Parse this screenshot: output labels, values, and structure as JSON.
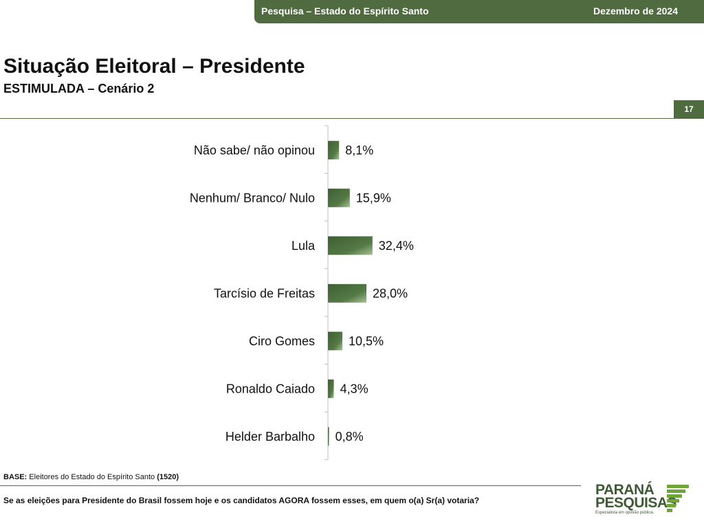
{
  "header": {
    "survey": "Pesquisa – Estado do Espírito Santo",
    "date": "Dezembro de 2024"
  },
  "title": "Situação Eleitoral – Presidente",
  "subtitle": "ESTIMULADA – Cenário 2",
  "page_number": "17",
  "chart_data": {
    "type": "bar",
    "orientation": "horizontal",
    "categories": [
      "Não sabe/ não opinou",
      "Nenhum/ Branco/ Nulo",
      "Lula",
      "Tarcísio de Freitas",
      "Ciro Gomes",
      "Ronaldo Caiado",
      "Helder Barbalho"
    ],
    "values": [
      8.1,
      15.9,
      32.4,
      28.0,
      10.5,
      4.3,
      0.8
    ],
    "data_labels": [
      "8,1%",
      "15,9%",
      "32,4%",
      "28,0%",
      "10,5%",
      "4,3%",
      "0,8%"
    ],
    "xlim": [
      0,
      100
    ],
    "grid": false,
    "legend": "none",
    "colors": {
      "bar": "#4a6b3c"
    }
  },
  "footer": {
    "base_label": "BASE:",
    "base_text": " Eleitores do Estado do Espírito Santo ",
    "base_count": "(1520)",
    "question": "Se as eleições para Presidente do Brasil fossem hoje e os candidatos AGORA fossem esses, em quem o(a) Sr(a) votaria?"
  },
  "logo": {
    "line1": "PARANÁ",
    "line2": "PESQUISAS",
    "tagline": "Especialista em opinião pública."
  },
  "colors": {
    "brand": "#4f6b3f",
    "logo": "#3e5a34",
    "stripes": "#6fa53a"
  }
}
